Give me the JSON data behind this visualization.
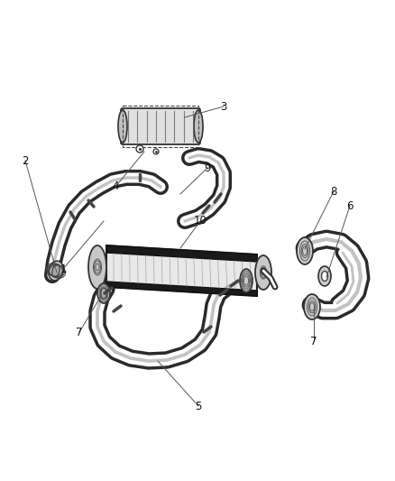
{
  "background_color": "#ffffff",
  "line_color": "#2a2a2a",
  "fig_width": 4.38,
  "fig_height": 5.33,
  "dpi": 100,
  "label_fontsize": 8.5
}
